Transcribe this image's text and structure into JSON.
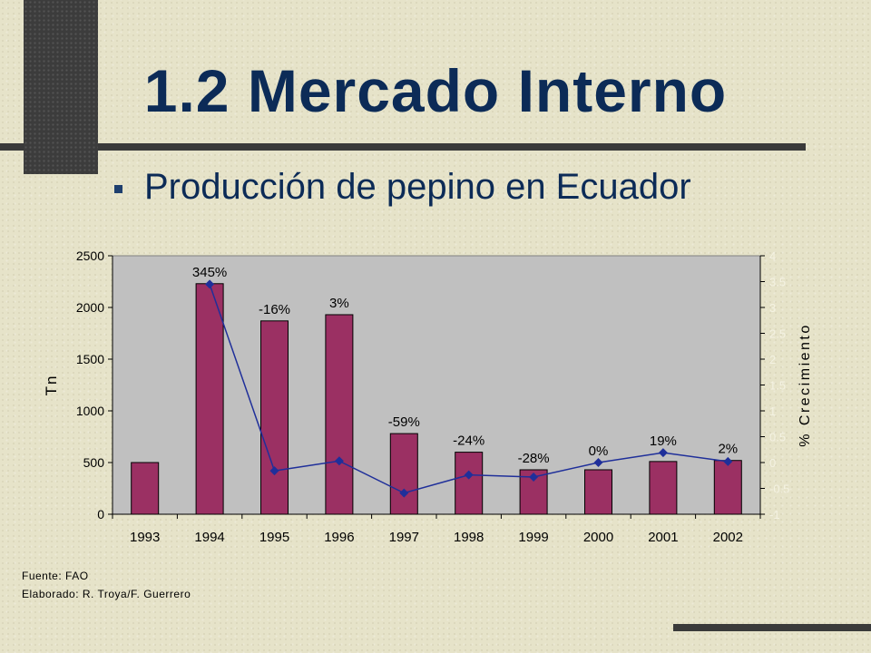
{
  "slide": {
    "title": "1.2 Mercado Interno",
    "subtitle": "Producción de pepino en Ecuador",
    "source_line": "Fuente: FAO",
    "author_line": "Elaborado: R. Troya/F. Guerrero"
  },
  "colors": {
    "title": "#0c2b57",
    "bar": "#9b3063",
    "line": "#1f2f9a",
    "plot_bg": "#c0c0c0"
  },
  "chart_data": {
    "type": "bar",
    "categories": [
      "1993",
      "1994",
      "1995",
      "1996",
      "1997",
      "1998",
      "1999",
      "2000",
      "2001",
      "2002"
    ],
    "series": [
      {
        "type": "bar",
        "axis": "left",
        "values": [
          500,
          2230,
          1870,
          1930,
          780,
          600,
          430,
          430,
          510,
          520
        ]
      },
      {
        "type": "line",
        "axis": "right",
        "values": [
          null,
          3.45,
          -0.16,
          0.03,
          -0.59,
          -0.24,
          -0.28,
          0.0,
          0.19,
          0.02
        ],
        "labels": [
          "",
          "345%",
          "-16%",
          "3%",
          "-59%",
          "-24%",
          "-28%",
          "0%",
          "19%",
          "2%"
        ]
      }
    ],
    "ylabel": "Tn",
    "y2label": "% Crecimiento",
    "ylim": [
      0,
      2500
    ],
    "y2lim": [
      -1,
      4
    ],
    "yticks": [
      "0",
      "500",
      "1000",
      "1500",
      "2000",
      "2500"
    ],
    "y2ticks": [
      "-1",
      "-0.5",
      "0",
      "0.5",
      "1",
      "1.5",
      "2",
      "2.5",
      "3",
      "3.5",
      "4"
    ],
    "grid": false,
    "legend": "none"
  }
}
